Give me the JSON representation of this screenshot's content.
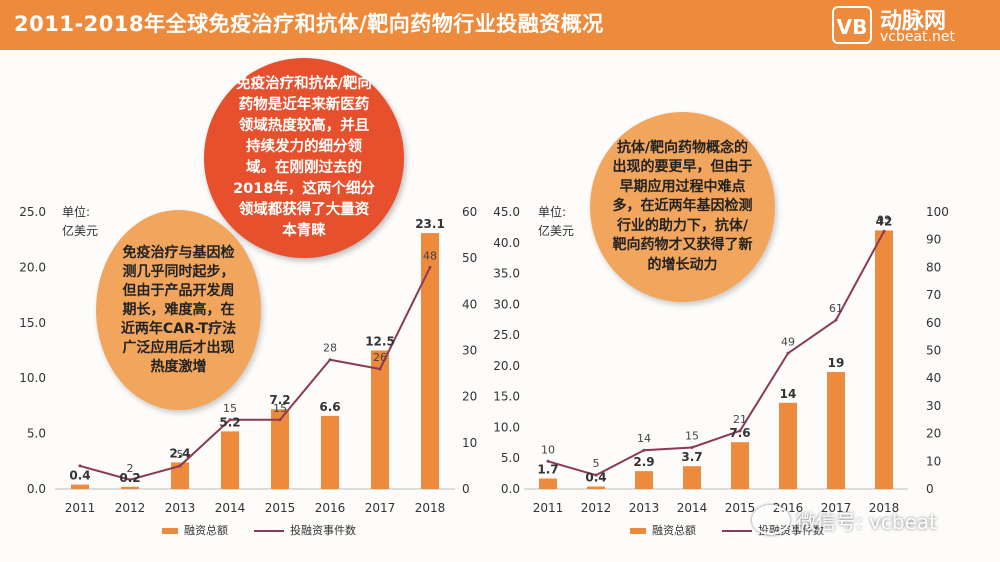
{
  "header": {
    "title": "2011-2018年全球免疫治疗和抗体/靶向药物行业投融资概况",
    "logo_mark": "VB",
    "logo_name": "动脉网",
    "logo_url": "vcbeat.net"
  },
  "colors": {
    "bar": "#ee8a3c",
    "line": "#8b3a55",
    "header": "#ee8a3c",
    "bubble_red": "#e6502c",
    "bubble_orange": "#f1a55d"
  },
  "bubbles": {
    "immuno_main": "免疫治疗和抗体/靶向药物是近年来新医药领域热度较高，并且持续发力的细分领域。在刚刚过去的2018年，这两个细分领域都获得了大量资本青睐",
    "immuno_detail": "免疫治疗与基因检测几乎同时起步，但由于产品开发周期长，难度高，在近两年CAR-T疗法广泛应用后才出现热度激增",
    "antibody_detail": "抗体/靶向药物概念的出现的要更早，但由于早期应用过程中难点多，在近两年基因检测行业的助力下，抗体/靶向药物才又获得了新的增长动力"
  },
  "watermark": "微信号: vcbeat",
  "chart_data": [
    {
      "type": "bar",
      "unit_label": [
        "单位:",
        "亿美元"
      ],
      "categories": [
        "2011",
        "2012",
        "2013",
        "2014",
        "2015",
        "2016",
        "2017",
        "2018"
      ],
      "series": [
        {
          "name": "融资总额",
          "axis": "left",
          "kind": "bar",
          "values": [
            0.4,
            0.2,
            2.4,
            5.2,
            7.2,
            6.6,
            12.5,
            23.1
          ],
          "labels": [
            "0.4",
            "0.2",
            "2.4",
            "5.2",
            "7.2",
            "6.6",
            "12.5",
            "23.1"
          ]
        },
        {
          "name": "投融资事件数",
          "axis": "right",
          "kind": "line",
          "values": [
            5,
            2,
            5,
            15,
            15,
            28,
            26,
            48
          ],
          "labels": [
            "",
            "2",
            "5",
            "15",
            "15",
            "28",
            "26",
            "48"
          ]
        }
      ],
      "y_left": {
        "min": 0,
        "max": 25,
        "ticks": [
          "0.0",
          "5.0",
          "10.0",
          "15.0",
          "20.0",
          "25.0"
        ]
      },
      "y_right": {
        "min": 0,
        "max": 60,
        "ticks": [
          "0",
          "10",
          "20",
          "30",
          "40",
          "50",
          "60"
        ]
      },
      "legend": [
        "融资总额",
        "投融资事件数"
      ]
    },
    {
      "type": "bar",
      "unit_label": [
        "单位:",
        "亿美元"
      ],
      "categories": [
        "2011",
        "2012",
        "2013",
        "2014",
        "2015",
        "2016",
        "2017",
        "2018"
      ],
      "series": [
        {
          "name": "融资总额",
          "axis": "left",
          "kind": "bar",
          "values": [
            1.7,
            0.4,
            2.9,
            3.7,
            7.6,
            14,
            19,
            42
          ],
          "labels": [
            "1.7",
            "0.4",
            "2.9",
            "3.7",
            "7.6",
            "14",
            "19",
            "42"
          ]
        },
        {
          "name": "投融资事件数",
          "axis": "right",
          "kind": "line",
          "values": [
            10,
            5,
            14,
            15,
            21,
            49,
            61,
            93
          ],
          "labels": [
            "10",
            "5",
            "14",
            "15",
            "21",
            "49",
            "61",
            "93"
          ]
        }
      ],
      "y_left": {
        "min": 0,
        "max": 45,
        "ticks": [
          "0.0",
          "5.0",
          "10.0",
          "15.0",
          "20.0",
          "25.0",
          "30.0",
          "35.0",
          "40.0",
          "45.0"
        ]
      },
      "y_right": {
        "min": 0,
        "max": 100,
        "ticks": [
          "0",
          "10",
          "20",
          "30",
          "40",
          "50",
          "60",
          "70",
          "80",
          "90",
          "100"
        ]
      },
      "legend": [
        "融资总额",
        "投融资事件数"
      ]
    }
  ]
}
